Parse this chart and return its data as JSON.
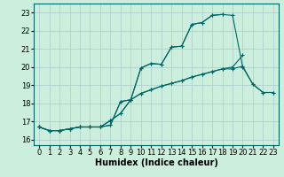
{
  "xlabel": "Humidex (Indice chaleur)",
  "bg_color": "#cceedd",
  "grid_color": "#aacccc",
  "line_color": "#006666",
  "xlim": [
    -0.5,
    23.5
  ],
  "ylim": [
    15.7,
    23.5
  ],
  "xticks": [
    0,
    1,
    2,
    3,
    4,
    5,
    6,
    7,
    8,
    9,
    10,
    11,
    12,
    13,
    14,
    15,
    16,
    17,
    18,
    19,
    20,
    21,
    22,
    23
  ],
  "yticks": [
    16,
    17,
    18,
    19,
    20,
    21,
    22,
    23
  ],
  "line1_x": [
    0,
    1,
    2,
    3,
    4,
    5,
    6,
    7,
    8,
    9,
    10,
    11,
    12,
    13,
    14,
    15,
    16,
    17,
    18,
    19,
    20,
    21,
    22,
    23
  ],
  "line1_y": [
    16.7,
    16.5,
    16.5,
    16.6,
    16.7,
    16.7,
    16.7,
    16.8,
    18.1,
    18.2,
    19.95,
    20.2,
    20.15,
    21.1,
    21.15,
    22.35,
    22.45,
    22.85,
    22.9,
    22.85,
    20.0,
    19.05,
    18.6,
    18.6
  ],
  "line2_x": [
    0,
    1,
    2,
    3,
    4,
    5,
    6,
    7,
    8,
    9,
    10,
    11,
    12,
    13,
    14,
    15,
    16,
    17,
    18
  ],
  "line2_y": [
    16.7,
    16.5,
    16.5,
    16.6,
    16.7,
    16.7,
    16.7,
    16.8,
    18.1,
    18.2,
    19.95,
    20.2,
    20.15,
    21.1,
    21.15,
    22.35,
    22.45,
    22.85,
    22.9
  ],
  "line3_x": [
    0,
    1,
    2,
    3,
    4,
    5,
    6,
    7,
    8,
    9,
    10,
    11,
    12,
    13,
    14,
    15,
    16,
    17,
    18,
    19,
    20,
    21,
    22,
    23
  ],
  "line3_y": [
    16.7,
    16.5,
    16.5,
    16.6,
    16.7,
    16.7,
    16.7,
    17.05,
    17.45,
    18.2,
    18.55,
    18.75,
    18.95,
    19.1,
    19.25,
    19.45,
    19.6,
    19.75,
    19.9,
    20.0,
    20.65,
    null,
    null,
    null
  ],
  "line4_x": [
    0,
    1,
    2,
    3,
    4,
    5,
    6,
    7,
    8,
    9,
    10,
    11,
    12,
    13,
    14,
    15,
    16,
    17,
    18,
    19,
    20,
    21,
    22,
    23
  ],
  "line4_y": [
    16.7,
    16.5,
    16.5,
    16.6,
    16.7,
    16.7,
    16.7,
    17.05,
    17.45,
    18.2,
    18.55,
    18.75,
    18.95,
    19.1,
    19.25,
    19.45,
    19.6,
    19.75,
    19.9,
    19.9,
    20.05,
    19.05,
    18.6,
    18.6
  ],
  "xlabel_fontsize": 7,
  "tick_fontsize": 6
}
